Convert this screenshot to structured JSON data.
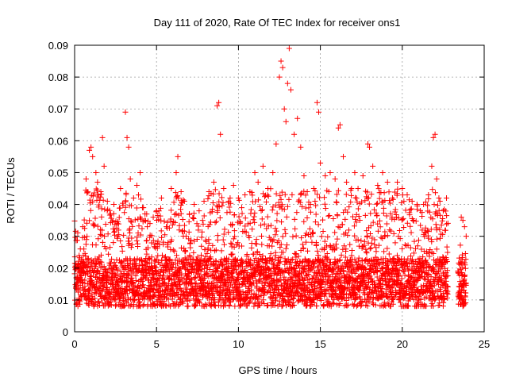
{
  "chart_data": {
    "type": "scatter",
    "title": "Day 111 of 2020, Rate Of TEC Index for receiver ons1",
    "xlabel": "GPS time / hours",
    "ylabel": "ROTI / TECUs",
    "xlim": [
      0,
      25
    ],
    "ylim": [
      0,
      0.09
    ],
    "x_ticks": [
      "0",
      "5",
      "10",
      "15",
      "20",
      "25"
    ],
    "y_ticks": [
      "0",
      "0.01",
      "0.02",
      "0.03",
      "0.04",
      "0.05",
      "0.06",
      "0.07",
      "0.08",
      "0.09"
    ],
    "grid": true,
    "marker": "+",
    "colors": {
      "series": "#ff0000",
      "grid": "#a0a0a0",
      "axis": "#000000"
    },
    "series": [
      {
        "points": [
          [
            0.2,
            0.021
          ],
          [
            0.5,
            0.033
          ],
          [
            0.7,
            0.048
          ],
          [
            0.9,
            0.057
          ],
          [
            1.0,
            0.058
          ],
          [
            1.1,
            0.055
          ],
          [
            1.3,
            0.05
          ],
          [
            1.4,
            0.047
          ],
          [
            1.6,
            0.044
          ],
          [
            1.7,
            0.061
          ],
          [
            1.8,
            0.052
          ],
          [
            2.0,
            0.041
          ],
          [
            2.2,
            0.037
          ],
          [
            2.4,
            0.04
          ],
          [
            2.6,
            0.034
          ],
          [
            2.8,
            0.045
          ],
          [
            3.1,
            0.069
          ],
          [
            3.2,
            0.061
          ],
          [
            3.3,
            0.058
          ],
          [
            3.4,
            0.048
          ],
          [
            3.6,
            0.042
          ],
          [
            3.8,
            0.046
          ],
          [
            4.0,
            0.05
          ],
          [
            4.2,
            0.039
          ],
          [
            4.4,
            0.037
          ],
          [
            4.6,
            0.034
          ],
          [
            4.8,
            0.036
          ],
          [
            5.0,
            0.038
          ],
          [
            5.3,
            0.042
          ],
          [
            5.6,
            0.033
          ],
          [
            5.9,
            0.045
          ],
          [
            6.2,
            0.05
          ],
          [
            6.3,
            0.055
          ],
          [
            6.5,
            0.044
          ],
          [
            6.7,
            0.041
          ],
          [
            7.0,
            0.037
          ],
          [
            7.3,
            0.04
          ],
          [
            7.6,
            0.038
          ],
          [
            7.9,
            0.041
          ],
          [
            8.2,
            0.044
          ],
          [
            8.5,
            0.047
          ],
          [
            8.7,
            0.071
          ],
          [
            8.8,
            0.072
          ],
          [
            8.9,
            0.062
          ],
          [
            9.1,
            0.045
          ],
          [
            9.4,
            0.041
          ],
          [
            9.7,
            0.046
          ],
          [
            10.0,
            0.042
          ],
          [
            10.2,
            0.039
          ],
          [
            10.4,
            0.043
          ],
          [
            10.7,
            0.044
          ],
          [
            11.0,
            0.05
          ],
          [
            11.2,
            0.047
          ],
          [
            11.5,
            0.052
          ],
          [
            11.8,
            0.045
          ],
          [
            12.1,
            0.05
          ],
          [
            12.3,
            0.059
          ],
          [
            12.5,
            0.08
          ],
          [
            12.6,
            0.085
          ],
          [
            12.7,
            0.083
          ],
          [
            12.8,
            0.07
          ],
          [
            12.9,
            0.066
          ],
          [
            13.0,
            0.078
          ],
          [
            13.1,
            0.089
          ],
          [
            13.2,
            0.076
          ],
          [
            13.4,
            0.062
          ],
          [
            13.6,
            0.067
          ],
          [
            13.8,
            0.058
          ],
          [
            14.0,
            0.049
          ],
          [
            14.2,
            0.044
          ],
          [
            14.4,
            0.04
          ],
          [
            14.6,
            0.045
          ],
          [
            14.8,
            0.072
          ],
          [
            14.9,
            0.069
          ],
          [
            15.0,
            0.053
          ],
          [
            15.3,
            0.049
          ],
          [
            15.6,
            0.05
          ],
          [
            15.9,
            0.048
          ],
          [
            16.1,
            0.064
          ],
          [
            16.2,
            0.065
          ],
          [
            16.4,
            0.055
          ],
          [
            16.6,
            0.047
          ],
          [
            16.9,
            0.045
          ],
          [
            17.1,
            0.05
          ],
          [
            17.3,
            0.045
          ],
          [
            17.6,
            0.049
          ],
          [
            17.9,
            0.059
          ],
          [
            18.0,
            0.058
          ],
          [
            18.2,
            0.052
          ],
          [
            18.5,
            0.046
          ],
          [
            18.8,
            0.05
          ],
          [
            19.1,
            0.047
          ],
          [
            19.4,
            0.042
          ],
          [
            19.7,
            0.047
          ],
          [
            20.0,
            0.045
          ],
          [
            20.3,
            0.043
          ],
          [
            20.6,
            0.041
          ],
          [
            20.9,
            0.04
          ],
          [
            21.1,
            0.038
          ],
          [
            21.3,
            0.04
          ],
          [
            21.6,
            0.043
          ],
          [
            21.8,
            0.052
          ],
          [
            21.9,
            0.061
          ],
          [
            22.0,
            0.062
          ],
          [
            22.1,
            0.048
          ],
          [
            22.3,
            0.041
          ],
          [
            22.5,
            0.038
          ],
          [
            22.7,
            0.042
          ],
          [
            23.6,
            0.036
          ],
          [
            23.7,
            0.035
          ],
          [
            23.8,
            0.033
          ],
          [
            23.9,
            0.03
          ]
        ]
      }
    ]
  }
}
